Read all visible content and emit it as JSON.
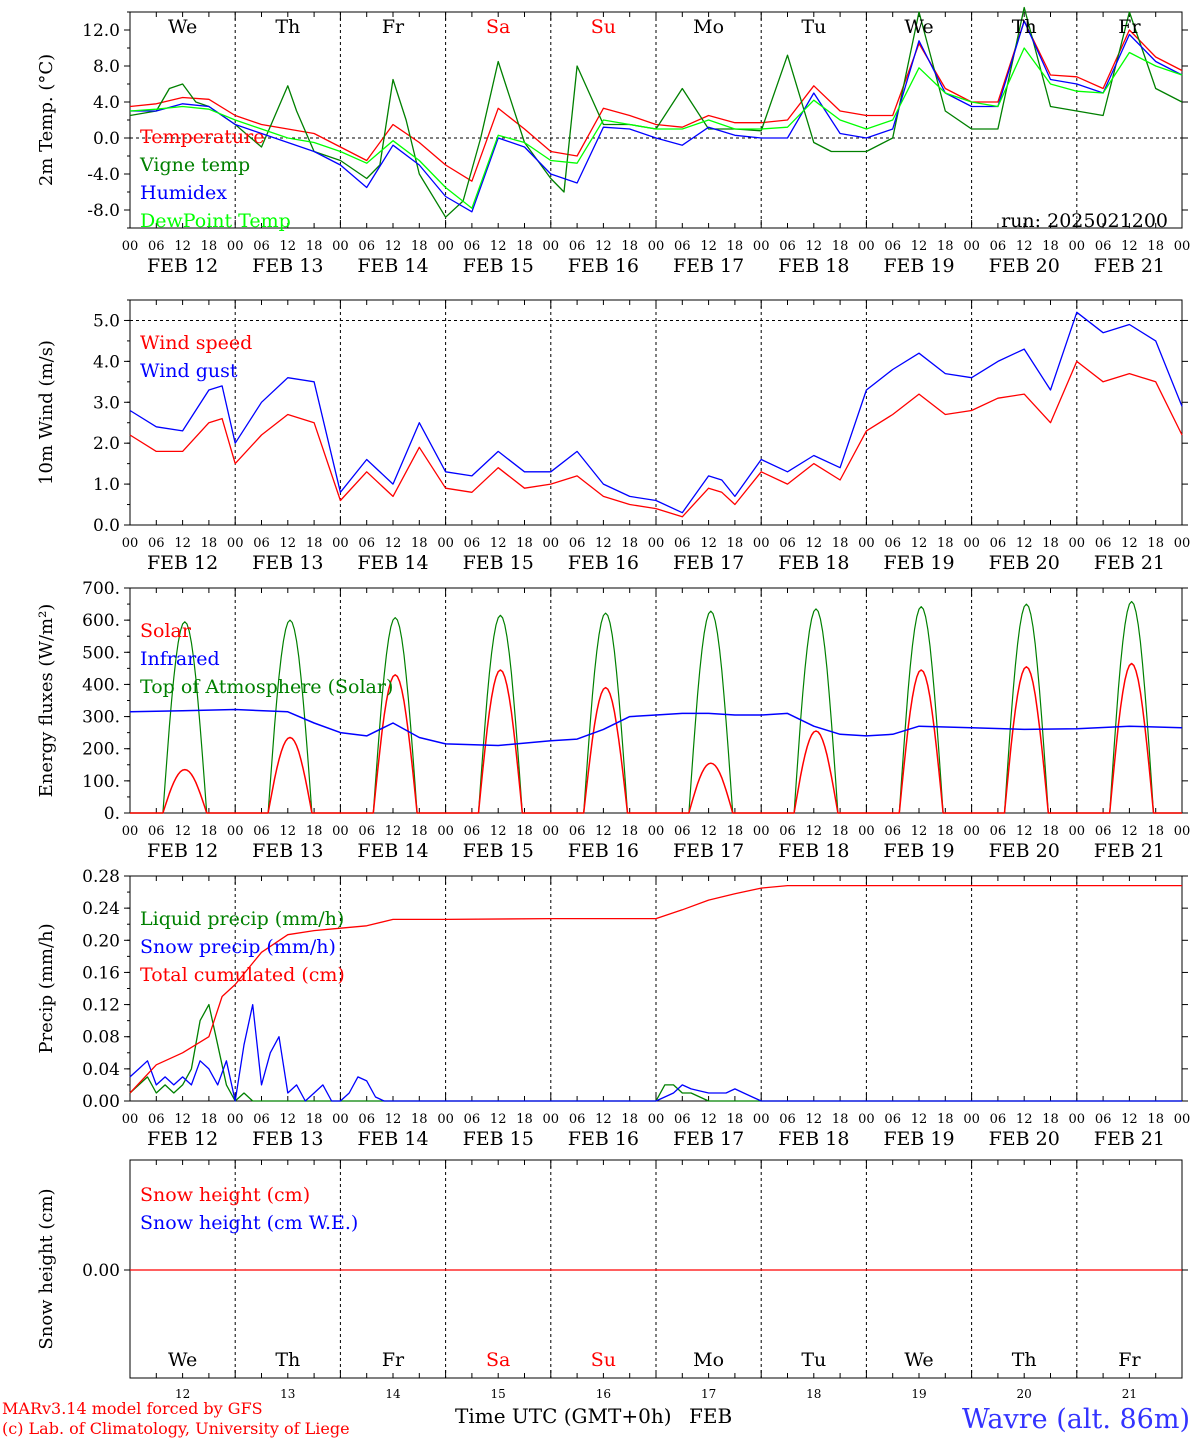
{
  "meta": {
    "run": "run: 2025021200",
    "model": "MARv3.14 model forced by GFS",
    "copyright": "(c) Lab. of Climatology, University of Liege",
    "xlabel": "Time UTC (GMT+0h)",
    "xlabel_month": "FEB",
    "location": "Wavre (alt. 86m)"
  },
  "days": [
    {
      "abbr": "We",
      "date": "FEB 12",
      "num": "12",
      "weekend": false
    },
    {
      "abbr": "Th",
      "date": "FEB 13",
      "num": "13",
      "weekend": false
    },
    {
      "abbr": "Fr",
      "date": "FEB 14",
      "num": "14",
      "weekend": false
    },
    {
      "abbr": "Sa",
      "date": "FEB 15",
      "num": "15",
      "weekend": true
    },
    {
      "abbr": "Su",
      "date": "FEB 16",
      "num": "16",
      "weekend": true
    },
    {
      "abbr": "Mo",
      "date": "FEB 17",
      "num": "17",
      "weekend": false
    },
    {
      "abbr": "Tu",
      "date": "FEB 18",
      "num": "18",
      "weekend": false
    },
    {
      "abbr": "We",
      "date": "FEB 19",
      "num": "19",
      "weekend": false
    },
    {
      "abbr": "Th",
      "date": "FEB 20",
      "num": "20",
      "weekend": false
    },
    {
      "abbr": "Fr",
      "date": "FEB 21",
      "num": "21",
      "weekend": false
    }
  ],
  "hour_ticks": [
    "00",
    "06",
    "12",
    "18"
  ],
  "colors": {
    "red": "#ff0000",
    "green": "#008000",
    "blue": "#0000ff",
    "lime": "#00ff00",
    "weekend": "#ff0000",
    "location": "#3333ff"
  },
  "chart_data": [
    {
      "id": "temperature",
      "type": "line",
      "ylabel": "2m Temp. (°C)",
      "ylim": [
        -10,
        14
      ],
      "yticks": [
        -8,
        -4,
        0,
        4,
        8,
        12
      ],
      "ytick_labels": [
        "-8.0",
        "-4.0",
        "0.0",
        "4.0",
        "8.0",
        "12.0"
      ],
      "x_unit": "hours since FEB 12 00 UTC",
      "zero_line": true,
      "series": [
        {
          "name": "Temperature",
          "color": "#ff0000",
          "x": [
            0,
            6,
            12,
            18,
            24,
            30,
            36,
            42,
            48,
            54,
            60,
            66,
            72,
            78,
            84,
            90,
            96,
            102,
            108,
            114,
            120,
            126,
            132,
            138,
            144,
            150,
            156,
            162,
            168,
            174,
            180,
            186,
            192,
            198,
            204,
            210,
            216,
            222,
            228,
            234,
            240
          ],
          "y": [
            3.5,
            3.8,
            4.5,
            4.3,
            2.5,
            1.5,
            1.0,
            0.5,
            -1.0,
            -2.5,
            1.5,
            -0.5,
            -3.0,
            -4.8,
            3.3,
            1.0,
            -1.5,
            -2.0,
            3.3,
            2.5,
            1.5,
            1.2,
            2.5,
            1.7,
            1.7,
            2.0,
            5.8,
            3.0,
            2.5,
            2.5,
            10.5,
            5.5,
            4.0,
            4.0,
            13.0,
            7.0,
            6.8,
            5.5,
            12.0,
            9.0,
            7.5
          ]
        },
        {
          "name": "Vigne temp",
          "color": "#008000",
          "x": [
            0,
            6,
            9,
            12,
            15,
            18,
            24,
            30,
            36,
            38,
            42,
            48,
            54,
            57,
            60,
            63,
            66,
            72,
            76,
            80,
            84,
            90,
            96,
            99,
            102,
            108,
            114,
            120,
            126,
            132,
            138,
            144,
            150,
            156,
            160,
            162,
            168,
            174,
            180,
            186,
            192,
            198,
            204,
            210,
            216,
            222,
            228,
            234,
            240
          ],
          "y": [
            2.5,
            3.0,
            5.5,
            6.0,
            4.0,
            3.5,
            1.5,
            -1.0,
            5.8,
            3.0,
            -1.5,
            -2.5,
            -4.5,
            -3.0,
            6.5,
            2.0,
            -4.0,
            -8.8,
            -7.0,
            0.0,
            8.5,
            -0.5,
            -4.5,
            -6.0,
            8.0,
            1.5,
            1.5,
            1.0,
            5.5,
            1.0,
            1.0,
            0.8,
            9.2,
            -0.5,
            -1.5,
            -1.5,
            -1.5,
            0.0,
            14.0,
            3.0,
            1.0,
            1.0,
            14.5,
            3.5,
            3.0,
            2.5,
            14.0,
            5.5,
            4.0
          ]
        },
        {
          "name": "Humidex",
          "color": "#0000ff",
          "x": [
            0,
            6,
            12,
            18,
            24,
            30,
            36,
            42,
            48,
            54,
            60,
            66,
            72,
            78,
            84,
            90,
            96,
            102,
            108,
            114,
            120,
            126,
            132,
            138,
            144,
            150,
            156,
            162,
            168,
            174,
            180,
            186,
            192,
            198,
            204,
            210,
            216,
            222,
            228,
            234,
            240
          ],
          "y": [
            3.0,
            3.0,
            3.8,
            3.5,
            1.5,
            0.5,
            -0.5,
            -1.5,
            -3.0,
            -5.5,
            -0.8,
            -3.0,
            -6.5,
            -8.2,
            0.0,
            -1.0,
            -4.0,
            -5.0,
            1.2,
            1.0,
            0.0,
            -0.8,
            1.2,
            0.3,
            0.0,
            0.0,
            5.0,
            0.5,
            0.0,
            1.0,
            10.8,
            5.0,
            3.5,
            3.5,
            13.0,
            6.5,
            6.0,
            5.0,
            11.5,
            8.5,
            7.0
          ]
        },
        {
          "name": "DewPoint Temp",
          "color": "#00ff00",
          "x": [
            0,
            6,
            12,
            18,
            24,
            30,
            36,
            42,
            48,
            54,
            60,
            66,
            72,
            78,
            84,
            90,
            96,
            102,
            108,
            114,
            120,
            126,
            132,
            138,
            144,
            150,
            156,
            162,
            168,
            174,
            180,
            186,
            192,
            198,
            204,
            210,
            216,
            222,
            228,
            234,
            240
          ],
          "y": [
            3.0,
            3.2,
            3.5,
            3.2,
            2.0,
            1.0,
            0.0,
            -0.5,
            -1.5,
            -2.8,
            -0.3,
            -2.5,
            -5.5,
            -7.8,
            0.3,
            -0.5,
            -2.5,
            -2.8,
            2.0,
            1.5,
            1.0,
            1.0,
            2.0,
            1.0,
            1.0,
            1.2,
            4.2,
            2.0,
            1.0,
            2.0,
            7.8,
            5.0,
            4.0,
            3.5,
            10.0,
            6.0,
            5.2,
            5.0,
            9.5,
            8.0,
            7.0
          ]
        }
      ]
    },
    {
      "id": "wind",
      "type": "line",
      "ylabel": "10m Wind (m/s)",
      "ylim": [
        0,
        5.5
      ],
      "yticks": [
        0,
        1,
        2,
        3,
        4,
        5
      ],
      "ytick_labels": [
        "0.0",
        "1.0",
        "2.0",
        "3.0",
        "4.0",
        "5.0"
      ],
      "x_unit": "hours since FEB 12 00 UTC",
      "dashed_line_at": 5.0,
      "series": [
        {
          "name": "Wind speed",
          "color": "#ff0000",
          "x": [
            0,
            6,
            12,
            18,
            21,
            24,
            30,
            36,
            42,
            48,
            54,
            60,
            66,
            72,
            78,
            84,
            90,
            96,
            102,
            108,
            114,
            120,
            126,
            132,
            135,
            138,
            144,
            150,
            156,
            162,
            168,
            174,
            180,
            186,
            192,
            198,
            204,
            210,
            216,
            222,
            228,
            234,
            240
          ],
          "y": [
            2.2,
            1.8,
            1.8,
            2.5,
            2.6,
            1.5,
            2.2,
            2.7,
            2.5,
            0.6,
            1.3,
            0.7,
            1.9,
            0.9,
            0.8,
            1.4,
            0.9,
            1.0,
            1.2,
            0.7,
            0.5,
            0.4,
            0.2,
            0.9,
            0.8,
            0.5,
            1.3,
            1.0,
            1.5,
            1.1,
            2.3,
            2.7,
            3.2,
            2.7,
            2.8,
            3.1,
            3.2,
            2.5,
            4.0,
            3.5,
            3.7,
            3.5,
            2.2
          ]
        },
        {
          "name": "Wind gust",
          "color": "#0000ff",
          "x": [
            0,
            6,
            12,
            18,
            21,
            24,
            30,
            36,
            42,
            48,
            54,
            60,
            66,
            72,
            78,
            84,
            90,
            96,
            102,
            108,
            114,
            120,
            126,
            132,
            135,
            138,
            144,
            150,
            156,
            162,
            168,
            174,
            180,
            186,
            192,
            198,
            204,
            210,
            216,
            222,
            228,
            234,
            240
          ],
          "y": [
            2.8,
            2.4,
            2.3,
            3.3,
            3.4,
            2.0,
            3.0,
            3.6,
            3.5,
            0.8,
            1.6,
            1.0,
            2.5,
            1.3,
            1.2,
            1.8,
            1.3,
            1.3,
            1.8,
            1.0,
            0.7,
            0.6,
            0.3,
            1.2,
            1.1,
            0.7,
            1.6,
            1.3,
            1.7,
            1.4,
            3.3,
            3.8,
            4.2,
            3.7,
            3.6,
            4.0,
            4.3,
            3.3,
            5.2,
            4.7,
            4.9,
            4.5,
            2.9
          ]
        }
      ]
    },
    {
      "id": "energy",
      "type": "line",
      "ylabel": "Energy fluxes (W/m²)",
      "ylim": [
        0,
        700
      ],
      "yticks": [
        0,
        100,
        200,
        300,
        400,
        500,
        600,
        700
      ],
      "ytick_labels": [
        "0.",
        "100.",
        "200.",
        "300.",
        "400.",
        "500.",
        "600.",
        "700."
      ],
      "x_unit": "hours since FEB 12 00 UTC",
      "diurnal": {
        "day_start": 7.5,
        "day_end": 17.5,
        "toa_peaks": [
          595,
          600,
          608,
          615,
          622,
          628,
          635,
          642,
          650,
          658
        ],
        "solar_peaks": [
          135,
          235,
          430,
          445,
          390,
          155,
          255,
          445,
          455,
          465
        ]
      },
      "series": [
        {
          "name": "Solar",
          "color": "#ff0000"
        },
        {
          "name": "Infrared",
          "color": "#0000ff",
          "x": [
            0,
            12,
            24,
            36,
            42,
            48,
            54,
            60,
            66,
            72,
            84,
            96,
            102,
            108,
            114,
            120,
            126,
            132,
            138,
            144,
            150,
            156,
            162,
            168,
            174,
            180,
            192,
            204,
            216,
            228,
            240
          ],
          "y": [
            315,
            318,
            322,
            315,
            280,
            250,
            240,
            280,
            235,
            215,
            210,
            225,
            230,
            260,
            300,
            305,
            310,
            310,
            305,
            305,
            310,
            270,
            245,
            240,
            245,
            270,
            265,
            260,
            262,
            270,
            265
          ]
        },
        {
          "name": "Top of Atmosphere (Solar)",
          "color": "#008000"
        }
      ]
    },
    {
      "id": "precip",
      "type": "line",
      "ylabel": "Precip (mm/h)",
      "ylim": [
        0,
        0.28
      ],
      "yticks": [
        0,
        0.04,
        0.08,
        0.12,
        0.16,
        0.2,
        0.24,
        0.28
      ],
      "ytick_labels": [
        "0.00",
        "0.04",
        "0.08",
        "0.12",
        "0.16",
        "0.20",
        "0.24",
        "0.28"
      ],
      "x_unit": "hours since FEB 12 00 UTC",
      "series": [
        {
          "name": "Liquid precip (mm/h)",
          "color": "#008000",
          "x": [
            0,
            2,
            4,
            6,
            8,
            10,
            12,
            14,
            16,
            18,
            20,
            22,
            24,
            26,
            28,
            30,
            40,
            120,
            122,
            124,
            126,
            128,
            130,
            132,
            134,
            136,
            240
          ],
          "y": [
            0.01,
            0.02,
            0.03,
            0.01,
            0.02,
            0.01,
            0.02,
            0.04,
            0.1,
            0.12,
            0.07,
            0.02,
            0.0,
            0.01,
            0.0,
            0.0,
            0.0,
            0.0,
            0.02,
            0.02,
            0.01,
            0.01,
            0.005,
            0.0,
            0.0,
            0.0,
            0.0
          ]
        },
        {
          "name": "Snow precip (mm/h)",
          "color": "#0000ff",
          "x": [
            0,
            2,
            4,
            6,
            8,
            10,
            12,
            14,
            16,
            18,
            20,
            22,
            24,
            26,
            28,
            30,
            32,
            34,
            36,
            38,
            40,
            42,
            44,
            46,
            48,
            50,
            52,
            54,
            56,
            58,
            60,
            62,
            120,
            124,
            126,
            128,
            132,
            136,
            138,
            140,
            142,
            144,
            240
          ],
          "y": [
            0.03,
            0.04,
            0.05,
            0.02,
            0.03,
            0.02,
            0.03,
            0.02,
            0.05,
            0.04,
            0.02,
            0.05,
            0.0,
            0.07,
            0.12,
            0.02,
            0.06,
            0.08,
            0.01,
            0.02,
            0.0,
            0.01,
            0.02,
            0.0,
            0.0,
            0.01,
            0.03,
            0.025,
            0.005,
            0.0,
            0.0,
            0.0,
            0.0,
            0.01,
            0.02,
            0.015,
            0.01,
            0.01,
            0.015,
            0.01,
            0.005,
            0.0,
            0.0
          ]
        },
        {
          "name": "Total cumulated (cm)",
          "color": "#ff0000",
          "x": [
            0,
            6,
            12,
            18,
            21,
            24,
            30,
            36,
            42,
            48,
            54,
            60,
            72,
            96,
            120,
            126,
            132,
            138,
            144,
            150,
            240
          ],
          "y": [
            0.01,
            0.045,
            0.06,
            0.08,
            0.13,
            0.145,
            0.185,
            0.207,
            0.212,
            0.215,
            0.218,
            0.226,
            0.226,
            0.227,
            0.227,
            0.238,
            0.25,
            0.258,
            0.265,
            0.268,
            0.268
          ]
        }
      ]
    },
    {
      "id": "snow",
      "type": "line",
      "ylabel": "Snow height (cm)",
      "yticks": [
        0
      ],
      "ytick_labels": [
        "0.00"
      ],
      "x_unit": "hours since FEB 12 00 UTC",
      "series": [
        {
          "name": "Snow height (cm)",
          "color": "#ff0000",
          "x": [
            0,
            240
          ],
          "y": [
            0,
            0
          ]
        },
        {
          "name": "Snow height (cm W.E.)",
          "color": "#0000ff"
        }
      ]
    }
  ]
}
